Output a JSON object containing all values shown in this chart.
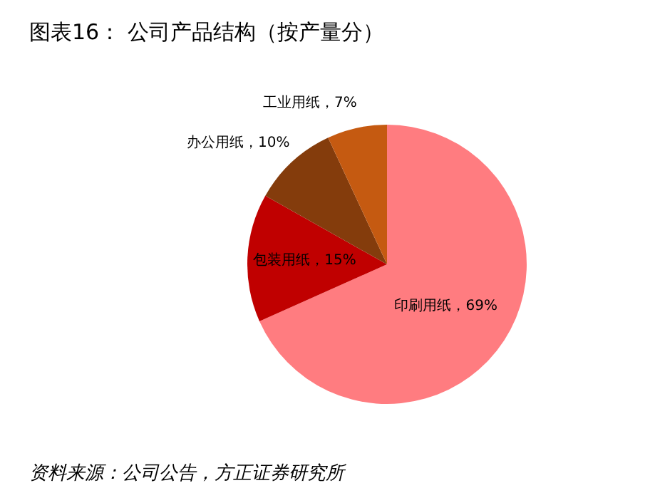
{
  "chart_data": {
    "type": "pie",
    "title": "图表16：  公司产品结构（按产量分）",
    "categories": [
      "印刷用纸",
      "包装用纸",
      "办公用纸",
      "工业用纸"
    ],
    "values": [
      69,
      15,
      10,
      7
    ],
    "colors": [
      "#ff7c80",
      "#c00000",
      "#843c0c",
      "#c55a11"
    ],
    "value_labels": [
      "，69%",
      "，15%",
      "，10%",
      "，7%"
    ],
    "annotations": [
      "资料来源：公司公告，方正证券研究所"
    ]
  }
}
